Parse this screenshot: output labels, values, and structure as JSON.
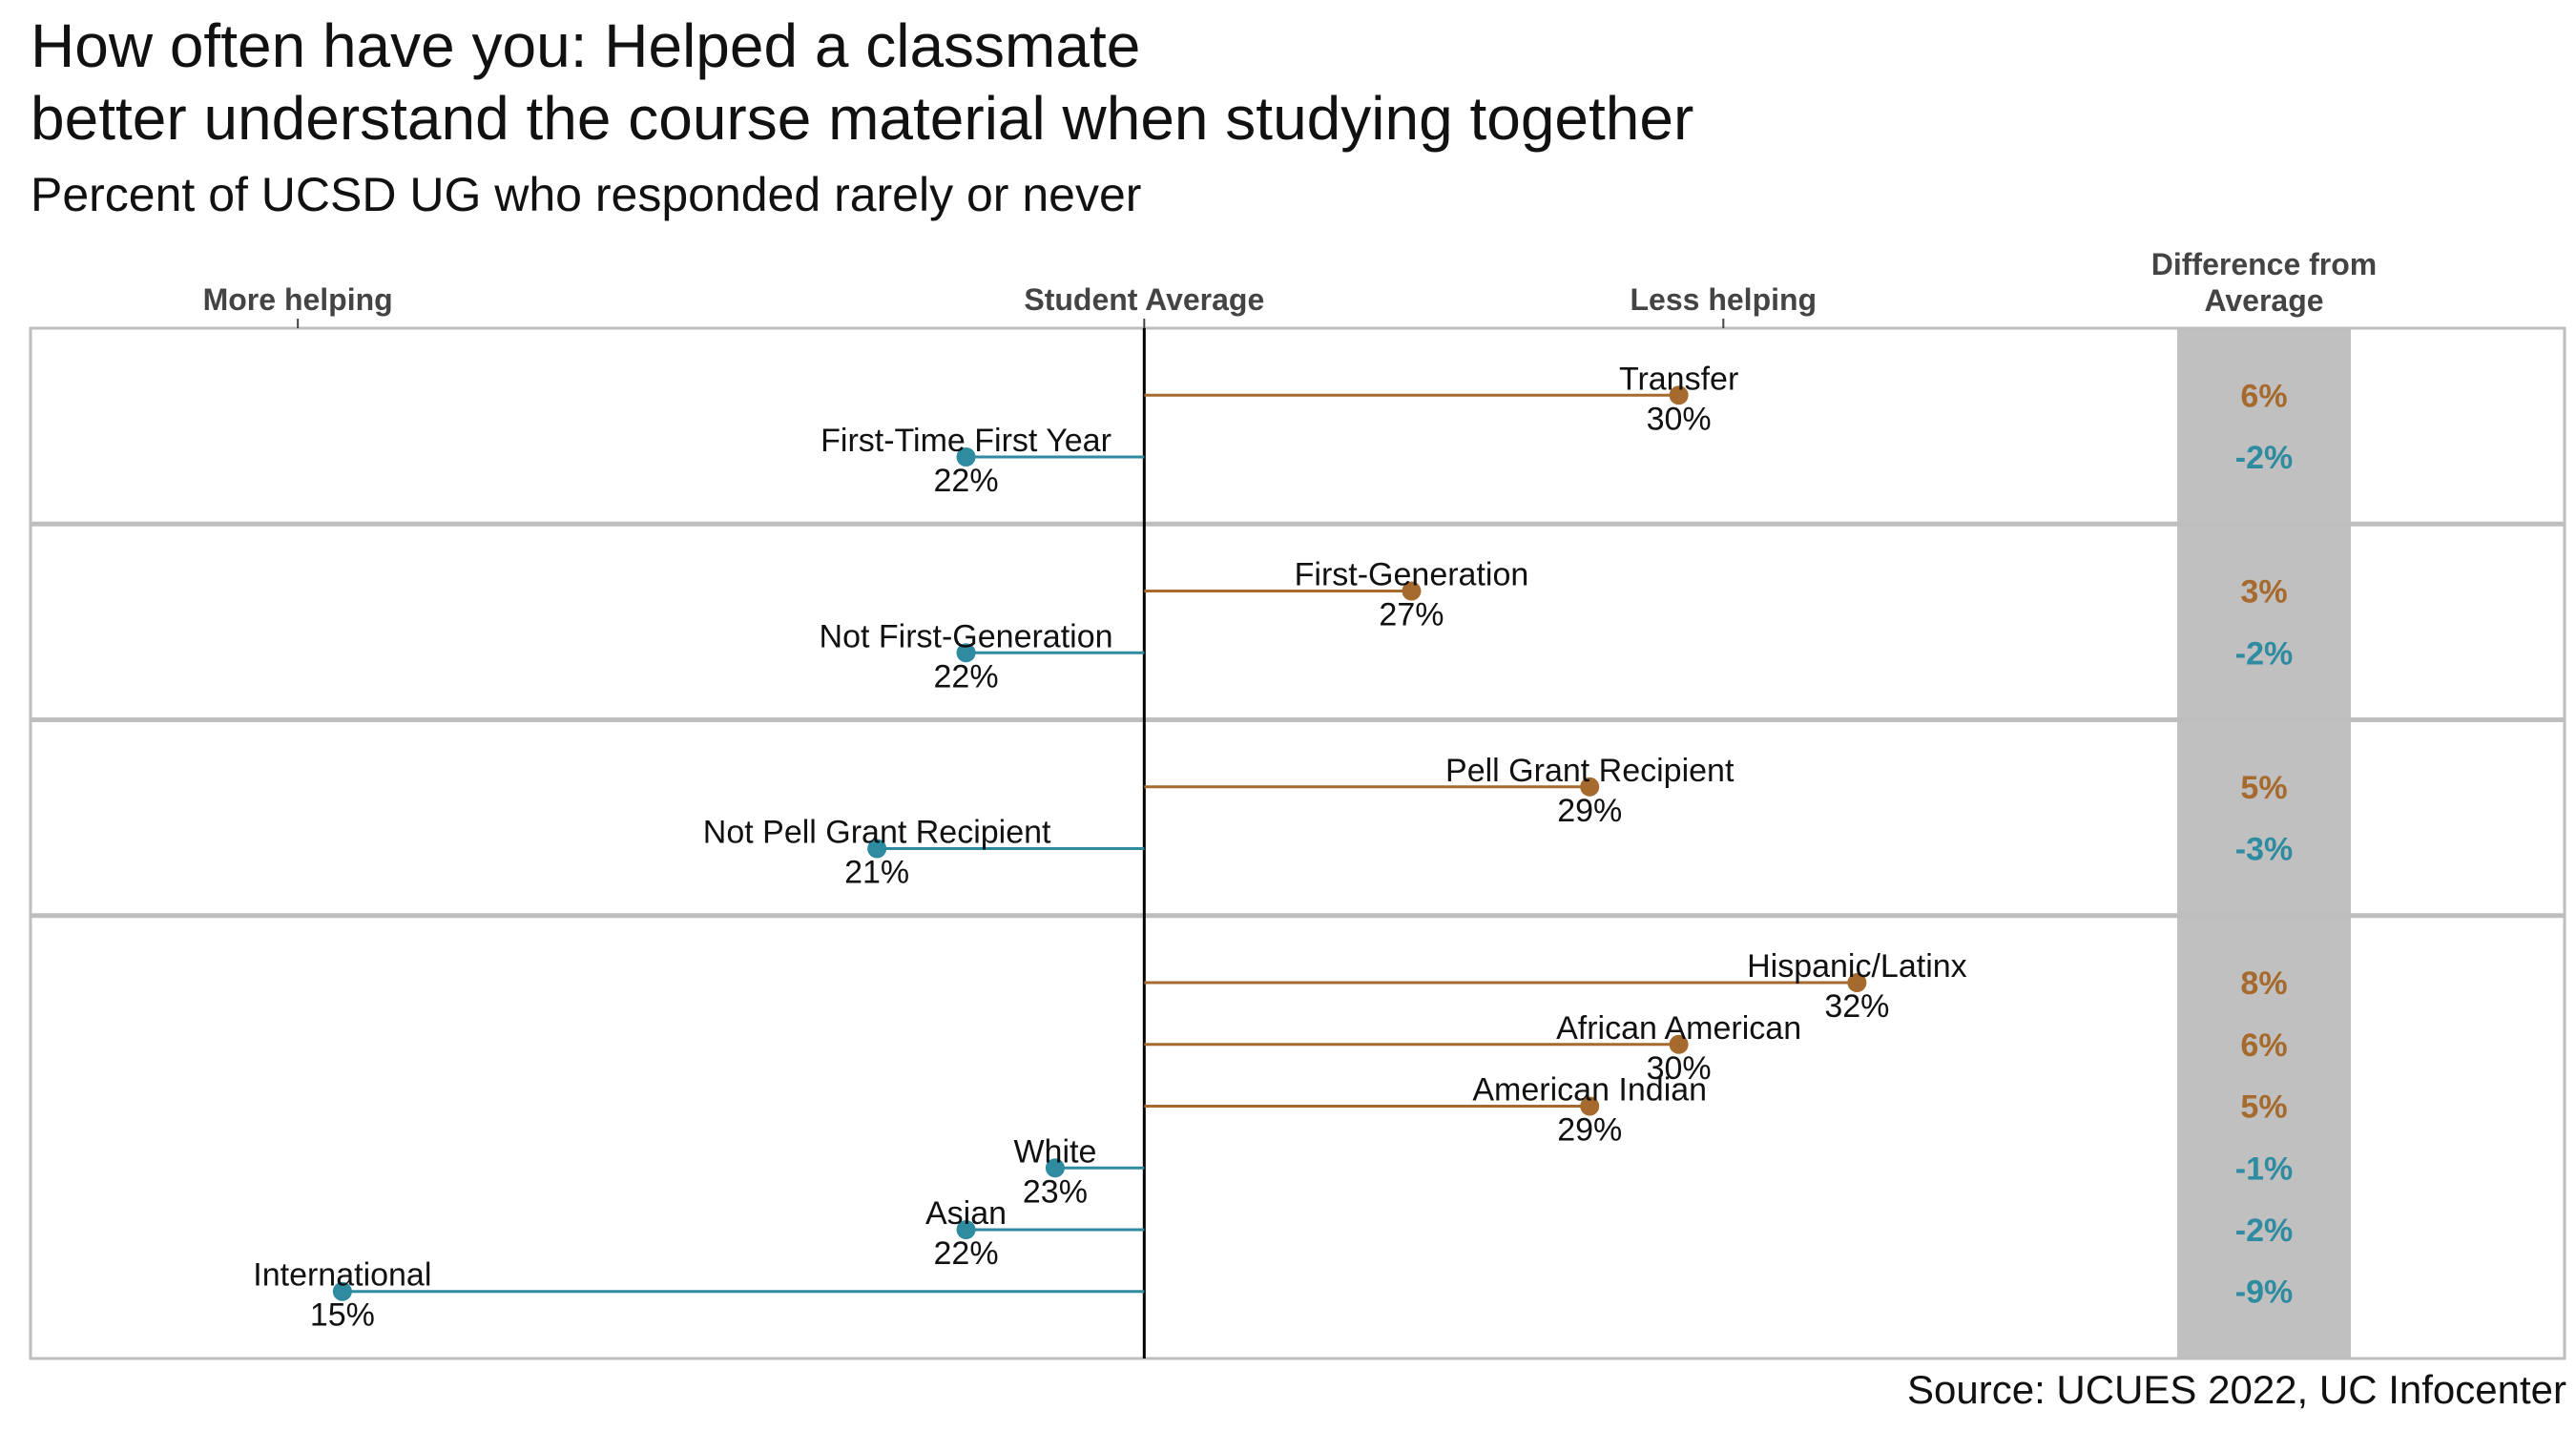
{
  "header": {
    "title_line1": "How often have you: Helped a classmate",
    "title_line2": "better understand the course material when studying together",
    "subtitle": "Percent of UCSD UG who responded rarely or never",
    "source": "Source: UCUES 2022, UC Infocenter"
  },
  "colors": {
    "above": "#A66A2E",
    "below": "#2E8BA0",
    "diff_panel": "#C0C0C0",
    "average_line": "#000000",
    "frame": "#BEBEBE"
  },
  "chart_data": {
    "type": "dot-plot",
    "average": 24,
    "xlim": [
      11.5,
      37.5
    ],
    "column_headers": {
      "left": "More helping",
      "center": "Student Average",
      "right": "Less helping",
      "diff_line1": "Difference from",
      "diff_line2": "Average"
    },
    "axis_markers": {
      "left": 14.5,
      "center": 24,
      "right": 30.5
    },
    "groups": [
      {
        "rows": [
          {
            "label": "Transfer",
            "value": 30,
            "value_label": "30%",
            "diff": "6%"
          },
          {
            "label": "First-Time First Year",
            "value": 22,
            "value_label": "22%",
            "diff": "-2%"
          }
        ]
      },
      {
        "rows": [
          {
            "label": "First-Generation",
            "value": 27,
            "value_label": "27%",
            "diff": "3%"
          },
          {
            "label": "Not First-Generation",
            "value": 22,
            "value_label": "22%",
            "diff": "-2%"
          }
        ]
      },
      {
        "rows": [
          {
            "label": "Pell Grant Recipient",
            "value": 29,
            "value_label": "29%",
            "diff": "5%"
          },
          {
            "label": "Not Pell Grant Recipient",
            "value": 21,
            "value_label": "21%",
            "diff": "-3%"
          }
        ]
      },
      {
        "rows": [
          {
            "label": "Hispanic/Latinx",
            "value": 32,
            "value_label": "32%",
            "diff": "8%"
          },
          {
            "label": "African American",
            "value": 30,
            "value_label": "30%",
            "diff": "6%"
          },
          {
            "label": "American Indian",
            "value": 29,
            "value_label": "29%",
            "diff": "5%"
          },
          {
            "label": "White",
            "value": 23,
            "value_label": "23%",
            "diff": "-1%"
          },
          {
            "label": "Asian",
            "value": 22,
            "value_label": "22%",
            "diff": "-2%"
          },
          {
            "label": "International",
            "value": 15,
            "value_label": "15%",
            "diff": "-9%"
          }
        ]
      }
    ]
  }
}
